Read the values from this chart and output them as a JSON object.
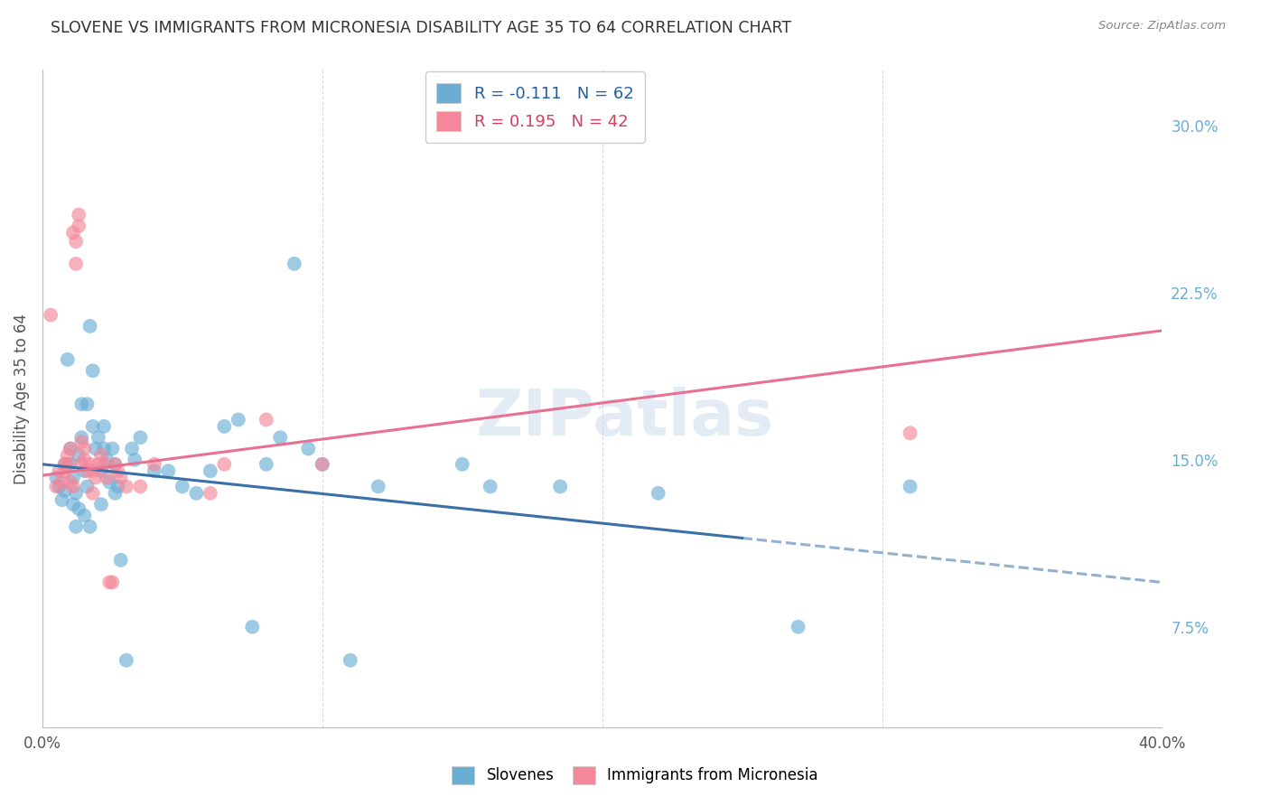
{
  "title": "SLOVENE VS IMMIGRANTS FROM MICRONESIA DISABILITY AGE 35 TO 64 CORRELATION CHART",
  "source": "Source: ZipAtlas.com",
  "ylabel": "Disability Age 35 to 64",
  "xlim": [
    0.0,
    0.4
  ],
  "ylim": [
    0.03,
    0.325
  ],
  "blue_color": "#6aaed6",
  "pink_color": "#f4879a",
  "blue_line_color": "#3a6fa8",
  "pink_line_color": "#e87090",
  "watermark": "ZIPatlas",
  "blue_scatter": [
    [
      0.005,
      0.142
    ],
    [
      0.006,
      0.138
    ],
    [
      0.007,
      0.132
    ],
    [
      0.008,
      0.136
    ],
    [
      0.008,
      0.148
    ],
    [
      0.009,
      0.195
    ],
    [
      0.01,
      0.148
    ],
    [
      0.01,
      0.155
    ],
    [
      0.011,
      0.13
    ],
    [
      0.011,
      0.142
    ],
    [
      0.012,
      0.12
    ],
    [
      0.012,
      0.135
    ],
    [
      0.013,
      0.128
    ],
    [
      0.013,
      0.152
    ],
    [
      0.014,
      0.16
    ],
    [
      0.014,
      0.175
    ],
    [
      0.015,
      0.145
    ],
    [
      0.015,
      0.125
    ],
    [
      0.016,
      0.138
    ],
    [
      0.016,
      0.175
    ],
    [
      0.017,
      0.12
    ],
    [
      0.017,
      0.21
    ],
    [
      0.018,
      0.19
    ],
    [
      0.018,
      0.165
    ],
    [
      0.019,
      0.155
    ],
    [
      0.02,
      0.16
    ],
    [
      0.021,
      0.145
    ],
    [
      0.021,
      0.13
    ],
    [
      0.022,
      0.165
    ],
    [
      0.022,
      0.155
    ],
    [
      0.023,
      0.15
    ],
    [
      0.024,
      0.14
    ],
    [
      0.025,
      0.155
    ],
    [
      0.026,
      0.135
    ],
    [
      0.026,
      0.148
    ],
    [
      0.027,
      0.138
    ],
    [
      0.028,
      0.105
    ],
    [
      0.03,
      0.06
    ],
    [
      0.032,
      0.155
    ],
    [
      0.033,
      0.15
    ],
    [
      0.035,
      0.16
    ],
    [
      0.04,
      0.145
    ],
    [
      0.045,
      0.145
    ],
    [
      0.05,
      0.138
    ],
    [
      0.055,
      0.135
    ],
    [
      0.06,
      0.145
    ],
    [
      0.065,
      0.165
    ],
    [
      0.07,
      0.168
    ],
    [
      0.075,
      0.075
    ],
    [
      0.08,
      0.148
    ],
    [
      0.085,
      0.16
    ],
    [
      0.09,
      0.238
    ],
    [
      0.095,
      0.155
    ],
    [
      0.1,
      0.148
    ],
    [
      0.11,
      0.06
    ],
    [
      0.12,
      0.138
    ],
    [
      0.15,
      0.148
    ],
    [
      0.16,
      0.138
    ],
    [
      0.185,
      0.138
    ],
    [
      0.22,
      0.135
    ],
    [
      0.27,
      0.075
    ],
    [
      0.31,
      0.138
    ]
  ],
  "pink_scatter": [
    [
      0.003,
      0.215
    ],
    [
      0.005,
      0.138
    ],
    [
      0.006,
      0.145
    ],
    [
      0.007,
      0.14
    ],
    [
      0.008,
      0.148
    ],
    [
      0.008,
      0.145
    ],
    [
      0.009,
      0.152
    ],
    [
      0.009,
      0.148
    ],
    [
      0.01,
      0.14
    ],
    [
      0.01,
      0.155
    ],
    [
      0.011,
      0.138
    ],
    [
      0.011,
      0.252
    ],
    [
      0.012,
      0.248
    ],
    [
      0.012,
      0.238
    ],
    [
      0.013,
      0.255
    ],
    [
      0.013,
      0.26
    ],
    [
      0.014,
      0.148
    ],
    [
      0.014,
      0.158
    ],
    [
      0.015,
      0.15
    ],
    [
      0.015,
      0.155
    ],
    [
      0.016,
      0.145
    ],
    [
      0.017,
      0.148
    ],
    [
      0.018,
      0.135
    ],
    [
      0.018,
      0.145
    ],
    [
      0.019,
      0.142
    ],
    [
      0.02,
      0.148
    ],
    [
      0.021,
      0.152
    ],
    [
      0.022,
      0.148
    ],
    [
      0.023,
      0.142
    ],
    [
      0.024,
      0.095
    ],
    [
      0.025,
      0.095
    ],
    [
      0.026,
      0.148
    ],
    [
      0.027,
      0.145
    ],
    [
      0.028,
      0.142
    ],
    [
      0.03,
      0.138
    ],
    [
      0.035,
      0.138
    ],
    [
      0.04,
      0.148
    ],
    [
      0.06,
      0.135
    ],
    [
      0.065,
      0.148
    ],
    [
      0.08,
      0.168
    ],
    [
      0.1,
      0.148
    ],
    [
      0.31,
      0.162
    ]
  ],
  "blue_line": {
    "x0": 0.0,
    "y0": 0.148,
    "x1": 0.4,
    "y1": 0.095
  },
  "blue_line_solid_end": 0.25,
  "pink_line": {
    "x0": 0.0,
    "y0": 0.143,
    "x1": 0.4,
    "y1": 0.208
  },
  "legend_entries": [
    {
      "label": "R = -0.111   N = 62",
      "color_text": "#2060a0",
      "patch_color": "#6aaed6"
    },
    {
      "label": "R = 0.195   N = 42",
      "color_text": "#d04060",
      "patch_color": "#f4879a"
    }
  ],
  "legend_labels_bottom": [
    "Slovenes",
    "Immigrants from Micronesia"
  ],
  "right_yticks": [
    0.075,
    0.15,
    0.225,
    0.3
  ],
  "right_yticklabels": [
    "7.5%",
    "15.0%",
    "22.5%",
    "30.0%"
  ],
  "grid_color": "#cccccc",
  "background_color": "#ffffff"
}
